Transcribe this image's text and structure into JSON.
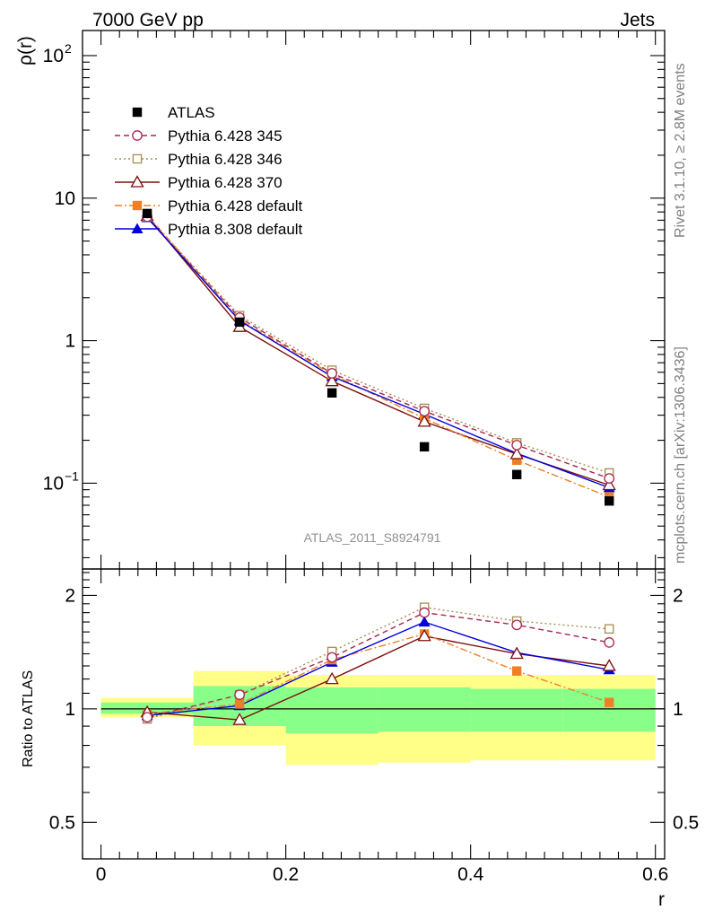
{
  "header": {
    "left_label": "7000 GeV pp",
    "right_label": "Jets",
    "side_top": "Rivet 3.1.10, ≥ 2.8M events",
    "side_bottom": "mcplots.cern.ch [arXiv:1306.3436]",
    "analysis_id": "ATLAS_2011_S8924791"
  },
  "chart_data": [
    {
      "type": "line",
      "ylabel": "ρ(r)",
      "yscale": "log",
      "ylim": [
        0.025,
        150
      ],
      "xlim": [
        -0.02,
        0.61
      ],
      "y_ticks": [
        {
          "value": 0.1,
          "base": "10",
          "exp": "−1"
        },
        {
          "value": 1,
          "label": "1"
        },
        {
          "value": 10,
          "label": "10"
        },
        {
          "value": 100,
          "base": "10",
          "exp": "2"
        }
      ],
      "legend_position": "top-left",
      "x": [
        0.05,
        0.15,
        0.25,
        0.35,
        0.45,
        0.55
      ],
      "series": [
        {
          "name": "ATLAS",
          "color": "#000000",
          "marker": "square-filled",
          "line": "none",
          "values": [
            7.8,
            1.35,
            0.43,
            0.18,
            0.115,
            0.075
          ]
        },
        {
          "name": "Pythia 6.428 345",
          "color": "#a8264e",
          "marker": "circle-open",
          "line": "dashed",
          "values": [
            7.4,
            1.45,
            0.59,
            0.32,
            0.185,
            0.108
          ]
        },
        {
          "name": "Pythia 6.428 346",
          "color": "#a88c52",
          "marker": "square-open",
          "line": "dotted",
          "values": [
            7.4,
            1.5,
            0.62,
            0.335,
            0.192,
            0.118
          ]
        },
        {
          "name": "Pythia 6.428 370",
          "color": "#7d0f0f",
          "marker": "triangle-open",
          "line": "solid",
          "values": [
            7.5,
            1.25,
            0.52,
            0.27,
            0.16,
            0.097
          ]
        },
        {
          "name": "Pythia 6.428 default",
          "color": "#ee7f27",
          "marker": "square-filled",
          "line": "dashdot",
          "values": [
            7.6,
            1.4,
            0.58,
            0.285,
            0.145,
            0.08
          ]
        },
        {
          "name": "Pythia 8.308 default",
          "color": "#0000dd",
          "marker": "triangle-filled",
          "line": "solid",
          "values": [
            7.3,
            1.38,
            0.56,
            0.305,
            0.162,
            0.093
          ]
        }
      ]
    },
    {
      "type": "line",
      "ylabel": "Ratio to ATLAS",
      "xlabel": "r",
      "yscale": "log",
      "ylim": [
        0.4,
        2.35
      ],
      "xlim": [
        -0.02,
        0.61
      ],
      "x_ticks": [
        {
          "value": 0,
          "label": "0"
        },
        {
          "value": 0.2,
          "label": "0.2"
        },
        {
          "value": 0.4,
          "label": "0.4"
        },
        {
          "value": 0.6,
          "label": "0.6"
        }
      ],
      "y_ticks": [
        {
          "value": 0.5,
          "label": "0.5"
        },
        {
          "value": 1,
          "label": "1"
        },
        {
          "value": 2,
          "label": "2"
        }
      ],
      "x": [
        0.05,
        0.15,
        0.25,
        0.35,
        0.45,
        0.55
      ],
      "uncertainty_bands": {
        "bins": [
          [
            0.0,
            0.1
          ],
          [
            0.1,
            0.2
          ],
          [
            0.2,
            0.3
          ],
          [
            0.3,
            0.4
          ],
          [
            0.4,
            0.5
          ],
          [
            0.5,
            0.6
          ]
        ],
        "outer": [
          [
            0.95,
            1.07
          ],
          [
            0.8,
            1.26
          ],
          [
            0.71,
            1.23
          ],
          [
            0.72,
            1.23
          ],
          [
            0.73,
            1.23
          ],
          [
            0.73,
            1.23
          ]
        ],
        "inner": [
          [
            0.97,
            1.04
          ],
          [
            0.9,
            1.15
          ],
          [
            0.86,
            1.14
          ],
          [
            0.87,
            1.14
          ],
          [
            0.87,
            1.13
          ],
          [
            0.87,
            1.13
          ]
        ],
        "outer_color": "#ffff88",
        "inner_color": "#88ff88"
      },
      "series": [
        {
          "name": "Pythia 6.428 345",
          "color": "#a8264e",
          "marker": "circle-open",
          "line": "dashed",
          "values": [
            0.95,
            1.09,
            1.37,
            1.8,
            1.67,
            1.5
          ]
        },
        {
          "name": "Pythia 6.428 346",
          "color": "#a88c52",
          "marker": "square-open",
          "line": "dotted",
          "values": [
            0.94,
            1.09,
            1.42,
            1.86,
            1.71,
            1.63
          ]
        },
        {
          "name": "Pythia 6.428 370",
          "color": "#7d0f0f",
          "marker": "triangle-open",
          "line": "solid",
          "values": [
            0.98,
            0.935,
            1.2,
            1.56,
            1.4,
            1.3
          ]
        },
        {
          "name": "Pythia 6.428 default",
          "color": "#ee7f27",
          "marker": "square-filled",
          "line": "dashdot",
          "values": [
            0.97,
            1.03,
            1.35,
            1.58,
            1.26,
            1.04
          ]
        },
        {
          "name": "Pythia 8.308 default",
          "color": "#0000dd",
          "marker": "triangle-filled",
          "line": "solid",
          "values": [
            0.96,
            1.02,
            1.33,
            1.7,
            1.41,
            1.27
          ]
        }
      ]
    }
  ]
}
